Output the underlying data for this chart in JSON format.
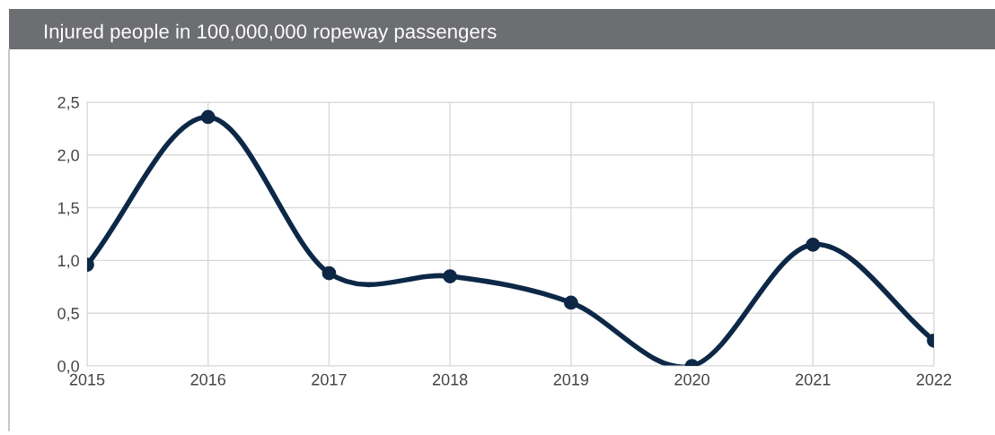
{
  "chart_data": {
    "type": "line",
    "title": "Injured people in 100,000,000 ropeway passengers",
    "x": [
      2015,
      2016,
      2017,
      2018,
      2019,
      2020,
      2021,
      2022
    ],
    "series": [
      {
        "color": "#0d2847",
        "values": [
          0.96,
          2.36,
          0.88,
          0.85,
          0.6,
          0.0,
          1.15,
          0.24
        ]
      }
    ],
    "xlim": [
      2015,
      2022
    ],
    "xticks": [
      2015,
      2016,
      2017,
      2018,
      2019,
      2020,
      2021,
      2022
    ],
    "ylim": [
      0,
      2.5
    ],
    "yticks": [
      {
        "value": 0,
        "label": "0,0"
      },
      {
        "value": 0.5,
        "label": "0,5"
      },
      {
        "value": 1.0,
        "label": "1,0"
      },
      {
        "value": 1.5,
        "label": "1,5"
      },
      {
        "value": 2.0,
        "label": "2,0"
      },
      {
        "value": 2.5,
        "label": "2,5"
      }
    ],
    "grid": true,
    "marker": "circle",
    "line_style": "solid",
    "legend": false
  }
}
